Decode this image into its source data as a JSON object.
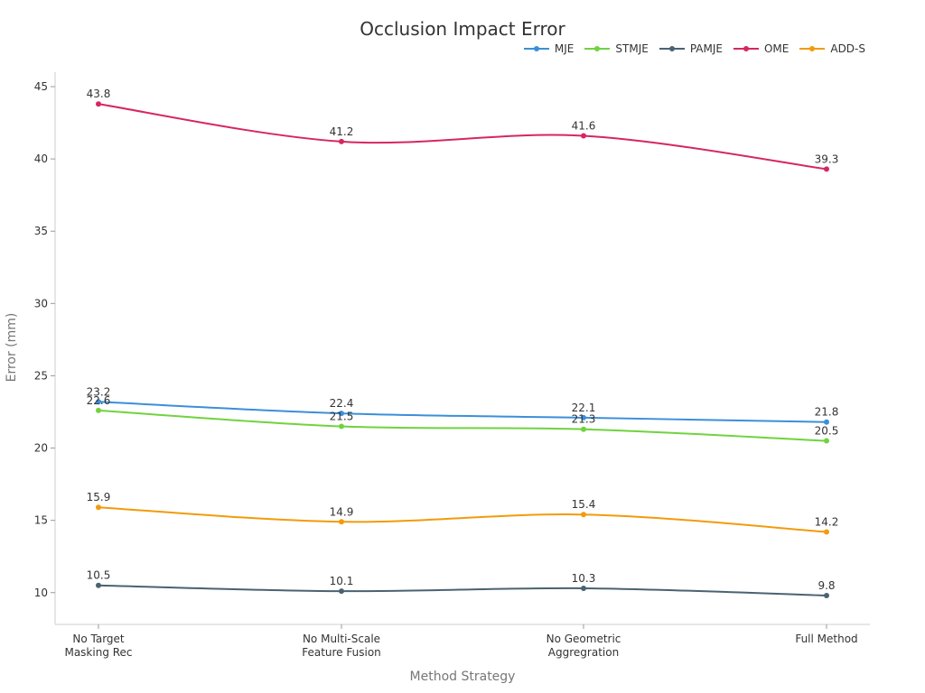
{
  "chart_data": {
    "type": "line",
    "title": "Occlusion Impact Error",
    "xlabel": "Method Strategy",
    "ylabel": "Error (mm)",
    "categories": [
      [
        "No Target",
        "Masking Rec"
      ],
      [
        "No Multi-Scale",
        "Feature Fusion"
      ],
      [
        "No Geometric",
        "Aggregration"
      ],
      [
        "Full Method"
      ]
    ],
    "ylim": [
      7.8,
      46
    ],
    "yticks": [
      10,
      15,
      20,
      25,
      30,
      35,
      40,
      45
    ],
    "grid": false,
    "legend_position": "top-right",
    "smooth": true,
    "series": [
      {
        "name": "MJE",
        "color": "#3b8fd9",
        "values": [
          23.2,
          22.4,
          22.1,
          21.8
        ],
        "labels": [
          "23.2",
          "22.4",
          "22.1",
          "21.8"
        ]
      },
      {
        "name": "STMJE",
        "color": "#6fd33f",
        "values": [
          22.6,
          21.5,
          21.3,
          20.5
        ],
        "labels": [
          "22.6",
          "21.5",
          "21.3",
          "20.5"
        ]
      },
      {
        "name": "PAMJE",
        "color": "#4a6272",
        "values": [
          10.5,
          10.1,
          10.3,
          9.8
        ],
        "labels": [
          "10.5",
          "10.1",
          "10.3",
          "9.8"
        ]
      },
      {
        "name": "OME",
        "color": "#d6275f",
        "values": [
          43.8,
          41.2,
          41.6,
          39.3
        ],
        "labels": [
          "43.8",
          "41.2",
          "41.6",
          "39.3"
        ]
      },
      {
        "name": "ADD-S",
        "color": "#f29b0b",
        "values": [
          15.9,
          14.9,
          15.4,
          14.2
        ],
        "labels": [
          "15.9",
          "14.9",
          "15.4",
          "14.2"
        ]
      }
    ]
  }
}
